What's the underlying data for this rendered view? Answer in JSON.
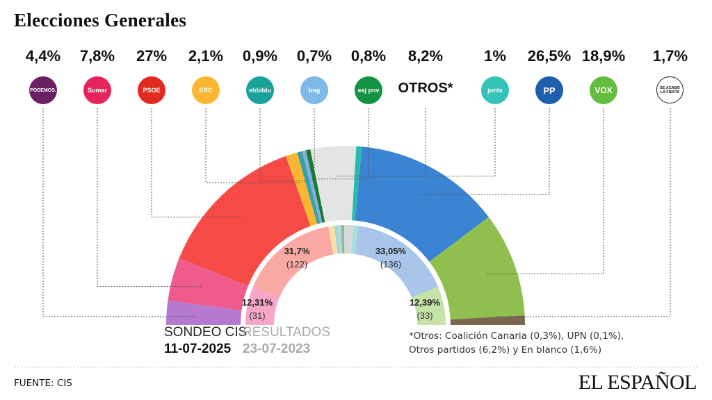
{
  "title": "Elecciones Generales",
  "parties": [
    {
      "key": "podemos",
      "pct": "4,4%",
      "logo_text": "PODEMOS.",
      "color": "#6a1f63"
    },
    {
      "key": "sumar",
      "pct": "7,8%",
      "logo_text": "Sumar",
      "color": "#e6235b"
    },
    {
      "key": "psoe",
      "pct": "27%",
      "logo_text": "PSOE",
      "color": "#e12b20"
    },
    {
      "key": "erc",
      "pct": "2,1%",
      "logo_text": "ERC",
      "color": "#fbb731"
    },
    {
      "key": "ehbildu",
      "pct": "0,9%",
      "logo_text": "ehbildu",
      "color": "#1aa19c"
    },
    {
      "key": "bng",
      "pct": "0,7%",
      "logo_text": "bng",
      "color": "#7fb9e8"
    },
    {
      "key": "pnv",
      "pct": "0,8%",
      "logo_text": "eaj pnv",
      "color": "#139243"
    },
    {
      "key": "otros",
      "pct": "8,2%",
      "logo_text": "OTROS*",
      "color": "#111111"
    },
    {
      "key": "junts",
      "pct": "1%",
      "logo_text": "junts",
      "color": "#34c3b7"
    },
    {
      "key": "pp",
      "pct": "26,5%",
      "logo_text": "PP",
      "color": "#1d5fad"
    },
    {
      "key": "vox",
      "pct": "18,9%",
      "logo_text": "VOX",
      "color": "#63be3f"
    },
    {
      "key": "fiesta",
      "pct": "1,7%",
      "logo_text": "SE ACABÓ LA FIESTA",
      "color": "#ffffff"
    }
  ],
  "chart_data": [
    {
      "type": "pie",
      "title": "SONDEO CIS 11-07-2025",
      "categories": [
        "Podemos",
        "Sumar",
        "PSOE",
        "ERC",
        "EH Bildu",
        "BNG",
        "PNV",
        "Otros",
        "Junts",
        "PP",
        "Vox",
        "Se Acabó La Fiesta"
      ],
      "values": [
        4.4,
        7.8,
        27,
        2.1,
        0.9,
        0.7,
        0.8,
        8.2,
        1,
        26.5,
        18.9,
        1.7
      ],
      "colors": [
        "#b57ad0",
        "#ef5b8c",
        "#f64a47",
        "#fbb731",
        "#3a9fa6",
        "#7fb0de",
        "#1a7a2e",
        "#e4e4e4",
        "#2bb8ad",
        "#3b84d4",
        "#8fc04f",
        "#7b6650"
      ]
    },
    {
      "type": "pie",
      "title": "RESULTADOS 23-07-2023",
      "categories": [
        "Sumar",
        "PSOE",
        "ERC",
        "EH Bildu",
        "BNG",
        "PNV",
        "Otros",
        "Junts",
        "PP",
        "Vox"
      ],
      "values": [
        12.31,
        31.7,
        1.9,
        1.4,
        0.6,
        1.1,
        2.9,
        1.6,
        33.05,
        12.39
      ],
      "colors": [
        "#f6a6c8",
        "#f9a8a3",
        "#fbe0a3",
        "#a8d6d8",
        "#c1daf0",
        "#8ebf8e",
        "#d8d8d8",
        "#a3e0d7",
        "#a9c6ea",
        "#c5e3a8"
      ]
    }
  ],
  "inner_labels": {
    "sumar": {
      "pct": "12,31%",
      "seats": "(31)"
    },
    "psoe": {
      "pct": "31,7%",
      "seats": "(122)"
    },
    "pp": {
      "pct": "33,05%",
      "seats": "(136)"
    },
    "vox": {
      "pct": "12,39%",
      "seats": "(33)"
    }
  },
  "captions": {
    "outer_line1": "SONDEO CIS",
    "outer_line2": "11-07-2025",
    "inner_line1": "RESULTADOS",
    "inner_line2": "23-07-2023"
  },
  "note": "*Otros: Coalición Canaria (0,3%), UPN (0,1%), Otros partidos (6,2%) y En blanco (1,6%)",
  "source": "FUENTE: CIS",
  "brand": "EL ESPAÑOL"
}
